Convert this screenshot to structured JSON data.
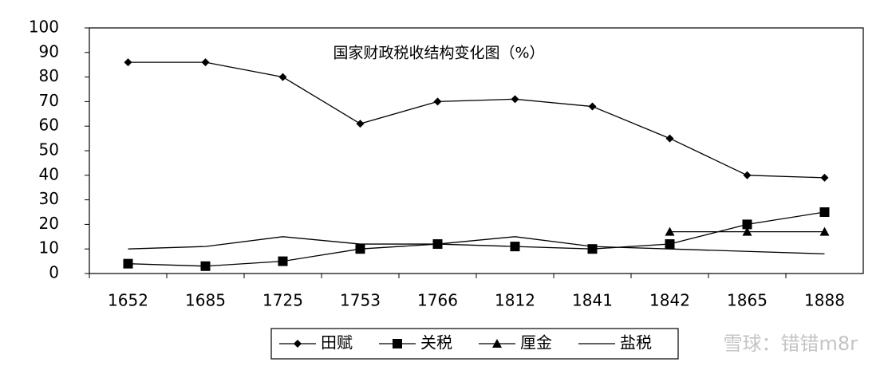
{
  "chart_data": {
    "type": "line",
    "title": "国家财政税收结构变化图（%）",
    "categories": [
      "1652",
      "1685",
      "1725",
      "1753",
      "1766",
      "1812",
      "1841",
      "1842",
      "1865",
      "1888"
    ],
    "series": [
      {
        "name": "田赋",
        "color": "#000000",
        "marker": "diamond",
        "values": [
          86,
          86,
          80,
          61,
          70,
          71,
          68,
          55,
          40,
          39
        ]
      },
      {
        "name": "关税",
        "color": "#000000",
        "marker": "square",
        "values": [
          4,
          3,
          5,
          10,
          12,
          11,
          10,
          12,
          20,
          25
        ]
      },
      {
        "name": "厘金",
        "color": "#000000",
        "marker": "triangle",
        "values": [
          null,
          null,
          null,
          null,
          null,
          null,
          null,
          17,
          17,
          17
        ]
      },
      {
        "name": "盐税",
        "color": "#000000",
        "marker": "dash",
        "values": [
          10,
          11,
          15,
          12,
          12,
          15,
          11,
          10,
          9,
          8
        ]
      }
    ],
    "ylim": [
      0,
      100
    ],
    "yticks": [
      0,
      10,
      20,
      30,
      40,
      50,
      60,
      70,
      80,
      90,
      100
    ],
    "grid": false,
    "legend": "bottom",
    "watermark": "雪球：错错m8r"
  }
}
